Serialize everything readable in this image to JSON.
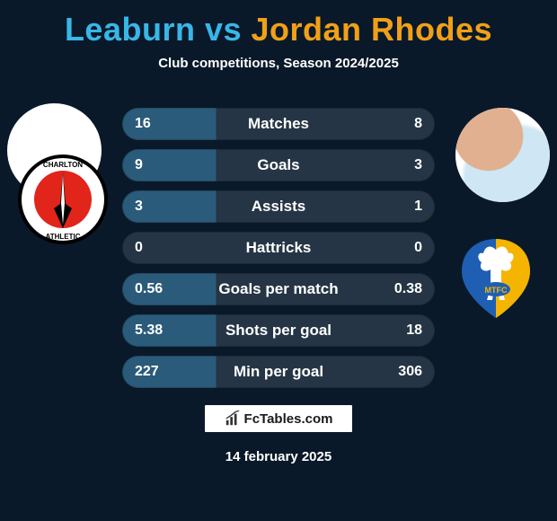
{
  "title": {
    "player1": "Leaburn",
    "vs": " vs ",
    "player2": "Jordan Rhodes",
    "player1_color": "#39b6e8",
    "player2_color": "#f0a018"
  },
  "subtitle": "Club competitions, Season 2024/2025",
  "footer_logo": "FcTables.com",
  "date": "14 february 2025",
  "row_default_bg": "#253545",
  "row_highlight_bg": "#2b5b7a",
  "text_color": "#ffffff",
  "background_color": "#0a1929",
  "stats": [
    {
      "label": "Matches",
      "p1": "16",
      "p2": "8",
      "highlight": "p1"
    },
    {
      "label": "Goals",
      "p1": "9",
      "p2": "3",
      "highlight": "p1"
    },
    {
      "label": "Assists",
      "p1": "3",
      "p2": "1",
      "highlight": "p1"
    },
    {
      "label": "Hattricks",
      "p1": "0",
      "p2": "0",
      "highlight": "none"
    },
    {
      "label": "Goals per match",
      "p1": "0.56",
      "p2": "0.38",
      "highlight": "p1"
    },
    {
      "label": "Shots per goal",
      "p1": "5.38",
      "p2": "18",
      "highlight": "p1"
    },
    {
      "label": "Min per goal",
      "p1": "227",
      "p2": "306",
      "highlight": "p1"
    }
  ],
  "club_left": {
    "name": "charlton-athletic",
    "ring_color": "#000000",
    "inner_color": "#e1251b",
    "sword_color": "#ffffff",
    "text_color": "#ffffff"
  },
  "club_right": {
    "name": "mansfield-town",
    "shield_left": "#1e5fb3",
    "shield_right": "#f5b400",
    "stag_color": "#ffffff",
    "ribbon_color": "#1e5fb3"
  }
}
